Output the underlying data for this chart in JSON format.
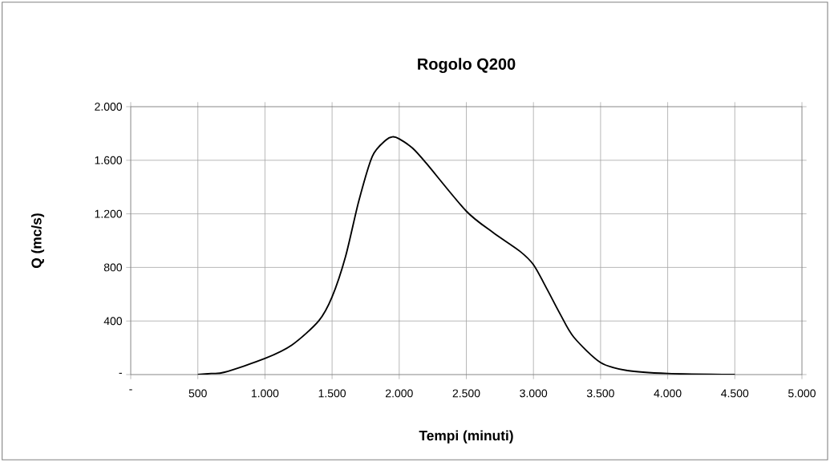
{
  "chart_data": {
    "type": "line",
    "title": "Rogolo Q200",
    "xlabel": "Tempi (minuti)",
    "ylabel": "Q (mc/s)",
    "xlim": [
      0,
      5000
    ],
    "ylim": [
      0,
      2000
    ],
    "xticks": [
      {
        "value": 0,
        "label": "-"
      },
      500,
      {
        "value": 1000,
        "label": "1.000"
      },
      {
        "value": 1500,
        "label": "1.500"
      },
      {
        "value": 2000,
        "label": "2.000"
      },
      {
        "value": 2500,
        "label": "2.500"
      },
      {
        "value": 3000,
        "label": "3.000"
      },
      {
        "value": 3500,
        "label": "3.500"
      },
      {
        "value": 4000,
        "label": "4.000"
      },
      {
        "value": 4500,
        "label": "4.500"
      },
      {
        "value": 5000,
        "label": "5.000"
      }
    ],
    "yticks": [
      {
        "value": 0,
        "label": "-"
      },
      400,
      800,
      {
        "value": 1200,
        "label": "1.200"
      },
      {
        "value": 1600,
        "label": "1.600"
      },
      {
        "value": 2000,
        "label": "2.000"
      }
    ],
    "grid": true,
    "marker": "none",
    "line_style": "solid",
    "series": [
      {
        "color": "#000000",
        "x": [
          500,
          600,
          700,
          1000,
          1200,
          1400,
          1500,
          1600,
          1700,
          1800,
          1900,
          1950,
          2000,
          2100,
          2200,
          2500,
          2700,
          2900,
          3000,
          3100,
          3200,
          3300,
          3500,
          3700,
          4000,
          4500
        ],
        "values": [
          0,
          8,
          18,
          120,
          220,
          400,
          580,
          880,
          1300,
          1630,
          1750,
          1775,
          1760,
          1690,
          1580,
          1220,
          1060,
          920,
          820,
          640,
          450,
          280,
          90,
          30,
          8,
          0
        ]
      }
    ]
  }
}
